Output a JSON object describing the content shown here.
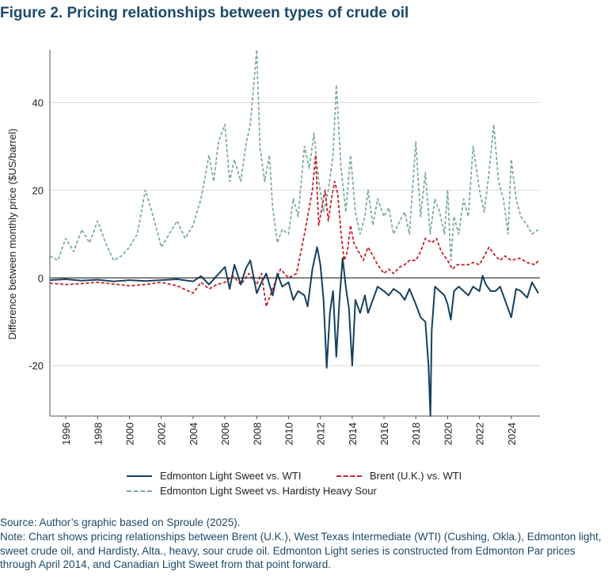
{
  "figure": {
    "title": "Figure 2. Pricing relationships between types of crude oil",
    "source": "Source: Author’s graphic based on Sproule (2025).",
    "note": "Note: Chart shows pricing relationships between Brent (U.K.), West Texas Intermediate (WTI) (Cushing, Okla.), Edmonton light, sweet crude oil, and Hardisty, Alta., heavy, sour crude oil. Edmonton Light series is constructed from Edmonton Par prices through April 2014, and Canadian Light Sweet from that point forward."
  },
  "chart_data": {
    "type": "line",
    "ylabel": "Difference between monthly price ($US/barrel)",
    "xlabel": "",
    "xlim": [
      1995,
      2025.8
    ],
    "ylim": [
      -31.5,
      52
    ],
    "yticks": [
      -20,
      0,
      20,
      40
    ],
    "xticks": [
      1996,
      1998,
      2000,
      2002,
      2004,
      2006,
      2008,
      2010,
      2012,
      2014,
      2016,
      2018,
      2020,
      2022,
      2024
    ],
    "grid": "horizontal",
    "legend_position": "bottom",
    "series": [
      {
        "name": "Edmonton Light Sweet vs. WTI",
        "color": "#17415f",
        "style": "solid",
        "points": [
          [
            1995.0,
            -0.5
          ],
          [
            1996.0,
            -0.3
          ],
          [
            1997.0,
            -0.6
          ],
          [
            1998.0,
            -0.4
          ],
          [
            1999.0,
            -0.8
          ],
          [
            2000.0,
            -0.5
          ],
          [
            2001.0,
            -0.7
          ],
          [
            2002.0,
            -0.5
          ],
          [
            2003.0,
            -0.3
          ],
          [
            2004.0,
            -0.8
          ],
          [
            2004.5,
            0.4
          ],
          [
            2005.0,
            -1.5
          ],
          [
            2005.5,
            0.5
          ],
          [
            2006.0,
            2.5
          ],
          [
            2006.3,
            -2.5
          ],
          [
            2006.6,
            3.0
          ],
          [
            2007.0,
            -1.5
          ],
          [
            2007.3,
            2.0
          ],
          [
            2007.6,
            4.0
          ],
          [
            2008.0,
            -3.5
          ],
          [
            2008.3,
            -1.0
          ],
          [
            2008.6,
            1.0
          ],
          [
            2009.0,
            -4.0
          ],
          [
            2009.3,
            1.0
          ],
          [
            2009.6,
            -2.0
          ],
          [
            2010.0,
            -1.0
          ],
          [
            2010.3,
            -5.0
          ],
          [
            2010.6,
            -3.0
          ],
          [
            2011.0,
            -4.0
          ],
          [
            2011.2,
            -6.5
          ],
          [
            2011.5,
            2.0
          ],
          [
            2011.8,
            7.0
          ],
          [
            2012.0,
            3.0
          ],
          [
            2012.2,
            -5.0
          ],
          [
            2012.4,
            -20.5
          ],
          [
            2012.6,
            -8.0
          ],
          [
            2012.8,
            -3.0
          ],
          [
            2013.0,
            -18.0
          ],
          [
            2013.2,
            -5.0
          ],
          [
            2013.4,
            4.5
          ],
          [
            2013.6,
            -2.0
          ],
          [
            2013.8,
            -7.0
          ],
          [
            2014.0,
            -20.0
          ],
          [
            2014.2,
            -5.0
          ],
          [
            2014.5,
            -8.0
          ],
          [
            2014.8,
            -4.0
          ],
          [
            2015.0,
            -8.0
          ],
          [
            2015.3,
            -5.0
          ],
          [
            2015.6,
            -2.0
          ],
          [
            2016.0,
            -3.0
          ],
          [
            2016.3,
            -4.0
          ],
          [
            2016.6,
            -2.5
          ],
          [
            2017.0,
            -3.5
          ],
          [
            2017.3,
            -5.0
          ],
          [
            2017.6,
            -2.5
          ],
          [
            2018.0,
            -6.0
          ],
          [
            2018.3,
            -9.0
          ],
          [
            2018.6,
            -10.0
          ],
          [
            2018.8,
            -20.0
          ],
          [
            2018.92,
            -31.5
          ],
          [
            2019.0,
            -12.0
          ],
          [
            2019.2,
            -2.0
          ],
          [
            2019.5,
            -3.0
          ],
          [
            2019.8,
            -4.0
          ],
          [
            2020.0,
            -6.0
          ],
          [
            2020.2,
            -9.5
          ],
          [
            2020.4,
            -3.0
          ],
          [
            2020.7,
            -2.0
          ],
          [
            2021.0,
            -3.0
          ],
          [
            2021.3,
            -4.0
          ],
          [
            2021.6,
            -2.0
          ],
          [
            2022.0,
            -3.0
          ],
          [
            2022.2,
            0.5
          ],
          [
            2022.4,
            -1.5
          ],
          [
            2022.7,
            -3.0
          ],
          [
            2023.0,
            -3.0
          ],
          [
            2023.3,
            -2.0
          ],
          [
            2023.6,
            -5.0
          ],
          [
            2024.0,
            -9.0
          ],
          [
            2024.3,
            -2.5
          ],
          [
            2024.6,
            -3.0
          ],
          [
            2025.0,
            -4.5
          ],
          [
            2025.3,
            -1.0
          ],
          [
            2025.7,
            -3.5
          ]
        ]
      },
      {
        "name": "Brent (U.K.) vs. WTI",
        "color": "#c8232b",
        "style": "dashed",
        "points": [
          [
            1995.0,
            -1.2
          ],
          [
            1996.0,
            -1.5
          ],
          [
            1997.0,
            -1.3
          ],
          [
            1998.0,
            -1.0
          ],
          [
            1999.0,
            -1.4
          ],
          [
            2000.0,
            -1.8
          ],
          [
            2001.0,
            -1.5
          ],
          [
            2002.0,
            -1.0
          ],
          [
            2003.0,
            -1.8
          ],
          [
            2004.0,
            -3.5
          ],
          [
            2004.5,
            -1.0
          ],
          [
            2005.0,
            -2.5
          ],
          [
            2005.5,
            -1.5
          ],
          [
            2006.0,
            -1.0
          ],
          [
            2006.5,
            0.5
          ],
          [
            2007.0,
            -1.5
          ],
          [
            2007.5,
            1.0
          ],
          [
            2008.0,
            -1.5
          ],
          [
            2008.3,
            1.0
          ],
          [
            2008.6,
            -6.5
          ],
          [
            2009.0,
            -2.5
          ],
          [
            2009.5,
            2.0
          ],
          [
            2010.0,
            0.0
          ],
          [
            2010.5,
            1.0
          ],
          [
            2011.0,
            10.0
          ],
          [
            2011.5,
            20.0
          ],
          [
            2011.7,
            28.0
          ],
          [
            2011.9,
            12.0
          ],
          [
            2012.1,
            16.0
          ],
          [
            2012.3,
            20.0
          ],
          [
            2012.5,
            13.0
          ],
          [
            2012.7,
            18.0
          ],
          [
            2012.9,
            22.0
          ],
          [
            2013.1,
            19.0
          ],
          [
            2013.3,
            10.0
          ],
          [
            2013.5,
            4.0
          ],
          [
            2013.7,
            6.0
          ],
          [
            2013.9,
            12.0
          ],
          [
            2014.1,
            8.0
          ],
          [
            2014.4,
            6.0
          ],
          [
            2014.7,
            4.0
          ],
          [
            2015.0,
            7.0
          ],
          [
            2015.3,
            5.0
          ],
          [
            2015.6,
            3.0
          ],
          [
            2016.0,
            1.0
          ],
          [
            2016.3,
            2.0
          ],
          [
            2016.6,
            1.0
          ],
          [
            2017.0,
            2.5
          ],
          [
            2017.3,
            3.0
          ],
          [
            2017.6,
            4.0
          ],
          [
            2018.0,
            4.0
          ],
          [
            2018.3,
            6.0
          ],
          [
            2018.6,
            9.0
          ],
          [
            2019.0,
            8.0
          ],
          [
            2019.3,
            9.0
          ],
          [
            2019.6,
            6.0
          ],
          [
            2020.0,
            4.0
          ],
          [
            2020.3,
            2.0
          ],
          [
            2020.6,
            3.0
          ],
          [
            2021.0,
            3.0
          ],
          [
            2021.3,
            3.0
          ],
          [
            2021.6,
            3.5
          ],
          [
            2022.0,
            3.0
          ],
          [
            2022.3,
            5.0
          ],
          [
            2022.6,
            7.0
          ],
          [
            2023.0,
            5.0
          ],
          [
            2023.3,
            4.0
          ],
          [
            2023.6,
            5.0
          ],
          [
            2024.0,
            4.0
          ],
          [
            2024.5,
            4.5
          ],
          [
            2025.0,
            3.5
          ],
          [
            2025.5,
            3.0
          ],
          [
            2025.7,
            4.0
          ]
        ]
      },
      {
        "name": "Edmonton Light Sweet vs. Hardisty Heavy Sour",
        "color": "#7dae9c",
        "style": "dashed",
        "points": [
          [
            1995.0,
            5.0
          ],
          [
            1995.5,
            4.0
          ],
          [
            1996.0,
            9.0
          ],
          [
            1996.5,
            6.0
          ],
          [
            1997.0,
            11.0
          ],
          [
            1997.5,
            8.0
          ],
          [
            1998.0,
            13.0
          ],
          [
            1998.5,
            8.0
          ],
          [
            1999.0,
            4.0
          ],
          [
            1999.5,
            5.0
          ],
          [
            2000.0,
            7.0
          ],
          [
            2000.5,
            10.0
          ],
          [
            2001.0,
            20.0
          ],
          [
            2001.5,
            14.0
          ],
          [
            2002.0,
            7.0
          ],
          [
            2002.5,
            10.0
          ],
          [
            2003.0,
            13.0
          ],
          [
            2003.5,
            9.0
          ],
          [
            2004.0,
            12.0
          ],
          [
            2004.5,
            18.0
          ],
          [
            2005.0,
            28.0
          ],
          [
            2005.3,
            22.0
          ],
          [
            2005.6,
            31.0
          ],
          [
            2006.0,
            35.0
          ],
          [
            2006.3,
            22.0
          ],
          [
            2006.6,
            27.0
          ],
          [
            2007.0,
            22.0
          ],
          [
            2007.3,
            30.0
          ],
          [
            2007.6,
            35.0
          ],
          [
            2008.0,
            52.0
          ],
          [
            2008.2,
            30.0
          ],
          [
            2008.5,
            22.0
          ],
          [
            2008.8,
            28.0
          ],
          [
            2009.0,
            16.0
          ],
          [
            2009.3,
            8.0
          ],
          [
            2009.6,
            11.0
          ],
          [
            2010.0,
            10.0
          ],
          [
            2010.3,
            18.0
          ],
          [
            2010.6,
            14.0
          ],
          [
            2011.0,
            30.0
          ],
          [
            2011.3,
            25.0
          ],
          [
            2011.6,
            33.0
          ],
          [
            2011.9,
            22.0
          ],
          [
            2012.2,
            15.0
          ],
          [
            2012.5,
            20.0
          ],
          [
            2012.8,
            28.0
          ],
          [
            2013.0,
            44.0
          ],
          [
            2013.3,
            25.0
          ],
          [
            2013.6,
            15.0
          ],
          [
            2013.9,
            28.0
          ],
          [
            2014.2,
            15.0
          ],
          [
            2014.5,
            10.0
          ],
          [
            2014.8,
            14.0
          ],
          [
            2015.0,
            20.0
          ],
          [
            2015.3,
            12.0
          ],
          [
            2015.6,
            18.0
          ],
          [
            2016.0,
            14.0
          ],
          [
            2016.3,
            16.0
          ],
          [
            2016.6,
            10.0
          ],
          [
            2017.0,
            13.0
          ],
          [
            2017.3,
            15.0
          ],
          [
            2017.6,
            10.0
          ],
          [
            2018.0,
            31.0
          ],
          [
            2018.3,
            14.0
          ],
          [
            2018.6,
            24.0
          ],
          [
            2018.9,
            10.0
          ],
          [
            2019.2,
            18.0
          ],
          [
            2019.5,
            15.0
          ],
          [
            2019.8,
            10.0
          ],
          [
            2020.0,
            20.0
          ],
          [
            2020.2,
            4.0
          ],
          [
            2020.4,
            14.0
          ],
          [
            2020.7,
            10.0
          ],
          [
            2021.0,
            18.0
          ],
          [
            2021.3,
            14.0
          ],
          [
            2021.6,
            30.0
          ],
          [
            2022.0,
            20.0
          ],
          [
            2022.3,
            15.0
          ],
          [
            2022.6,
            24.0
          ],
          [
            2022.9,
            35.0
          ],
          [
            2023.2,
            22.0
          ],
          [
            2023.5,
            18.0
          ],
          [
            2023.8,
            10.0
          ],
          [
            2024.0,
            27.0
          ],
          [
            2024.3,
            18.0
          ],
          [
            2024.6,
            14.0
          ],
          [
            2025.0,
            12.0
          ],
          [
            2025.3,
            10.0
          ],
          [
            2025.7,
            11.0
          ]
        ]
      }
    ]
  }
}
